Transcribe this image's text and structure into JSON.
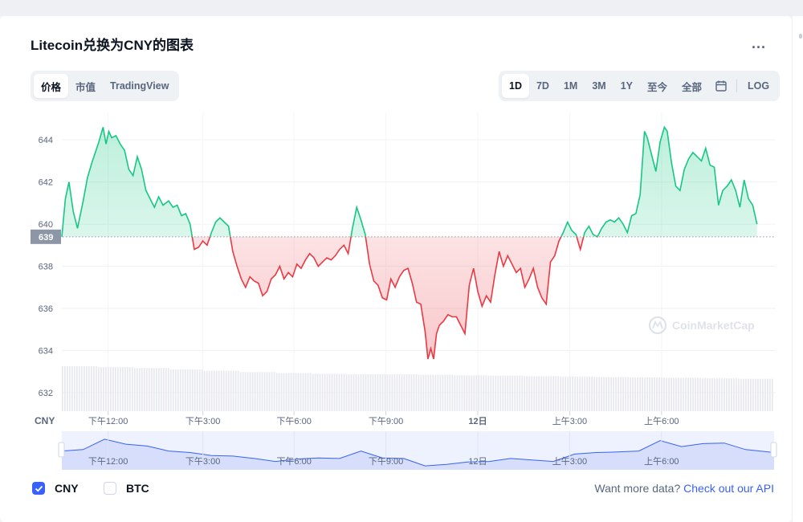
{
  "title": "Litecoin兑换为CNY的图表",
  "menu_icon": "more-horizontal-icon",
  "more_label": "...",
  "view_tabs": [
    {
      "label": "价格",
      "active": true
    },
    {
      "label": "市值",
      "active": false
    },
    {
      "label": "TradingView",
      "active": false
    }
  ],
  "range_tabs": [
    {
      "label": "1D",
      "active": true
    },
    {
      "label": "7D",
      "active": false
    },
    {
      "label": "1M",
      "active": false
    },
    {
      "label": "3M",
      "active": false
    },
    {
      "label": "1Y",
      "active": false
    },
    {
      "label": "至今",
      "active": false
    },
    {
      "label": "全部",
      "active": false
    }
  ],
  "calendar_icon": "calendar-icon",
  "log_label": "LOG",
  "currency_label": "CNY",
  "watermark": "CoinMarketCap",
  "checkboxes": [
    {
      "label": "CNY",
      "checked": true
    },
    {
      "label": "BTC",
      "checked": false
    }
  ],
  "more_data_text": "Want more data?",
  "api_link": "Check out our API",
  "colors": {
    "up": "#16c784",
    "down": "#ea3943",
    "accent": "#3861fb"
  },
  "chart_data": {
    "type": "line",
    "baseline": 639.4,
    "baseline_label": "639",
    "ylim": [
      631.2,
      645.3
    ],
    "yticks": [
      644,
      642,
      640,
      638,
      636,
      634,
      632
    ],
    "x_ticks": [
      {
        "t": 0.065,
        "label": "下午12:00"
      },
      {
        "t": 0.198,
        "label": "下午3:00"
      },
      {
        "t": 0.326,
        "label": "下午6:00"
      },
      {
        "t": 0.455,
        "label": "下午9:00"
      },
      {
        "t": 0.584,
        "label": "12日"
      },
      {
        "t": 0.713,
        "label": "上午3:00"
      },
      {
        "t": 0.842,
        "label": "上午6:00"
      }
    ],
    "price_series": [
      [
        0.0,
        639.4
      ],
      [
        0.005,
        641.2
      ],
      [
        0.01,
        642.0
      ],
      [
        0.016,
        640.6
      ],
      [
        0.022,
        639.8
      ],
      [
        0.03,
        641.1
      ],
      [
        0.036,
        642.2
      ],
      [
        0.042,
        642.9
      ],
      [
        0.048,
        643.5
      ],
      [
        0.052,
        643.9
      ],
      [
        0.058,
        644.6
      ],
      [
        0.062,
        643.8
      ],
      [
        0.066,
        644.4
      ],
      [
        0.07,
        644.1
      ],
      [
        0.076,
        644.2
      ],
      [
        0.082,
        643.8
      ],
      [
        0.088,
        643.5
      ],
      [
        0.094,
        642.6
      ],
      [
        0.1,
        642.3
      ],
      [
        0.106,
        643.2
      ],
      [
        0.112,
        642.6
      ],
      [
        0.118,
        641.6
      ],
      [
        0.124,
        641.2
      ],
      [
        0.13,
        640.8
      ],
      [
        0.136,
        641.3
      ],
      [
        0.142,
        640.9
      ],
      [
        0.15,
        641.1
      ],
      [
        0.156,
        640.8
      ],
      [
        0.162,
        640.9
      ],
      [
        0.168,
        640.4
      ],
      [
        0.174,
        640.5
      ],
      [
        0.18,
        640.0
      ],
      [
        0.186,
        638.8
      ],
      [
        0.192,
        638.9
      ],
      [
        0.198,
        639.2
      ],
      [
        0.204,
        639.0
      ],
      [
        0.21,
        639.6
      ],
      [
        0.216,
        640.1
      ],
      [
        0.222,
        640.3
      ],
      [
        0.228,
        640.1
      ],
      [
        0.234,
        639.9
      ],
      [
        0.24,
        638.7
      ],
      [
        0.246,
        638.0
      ],
      [
        0.252,
        637.4
      ],
      [
        0.258,
        637.0
      ],
      [
        0.264,
        637.5
      ],
      [
        0.27,
        637.3
      ],
      [
        0.276,
        637.2
      ],
      [
        0.282,
        636.6
      ],
      [
        0.288,
        636.8
      ],
      [
        0.294,
        637.4
      ],
      [
        0.3,
        637.6
      ],
      [
        0.306,
        638.0
      ],
      [
        0.312,
        637.4
      ],
      [
        0.318,
        637.7
      ],
      [
        0.324,
        637.5
      ],
      [
        0.33,
        638.1
      ],
      [
        0.336,
        637.9
      ],
      [
        0.342,
        638.3
      ],
      [
        0.348,
        638.6
      ],
      [
        0.354,
        638.4
      ],
      [
        0.36,
        638.0
      ],
      [
        0.366,
        638.2
      ],
      [
        0.372,
        638.4
      ],
      [
        0.378,
        638.3
      ],
      [
        0.384,
        638.5
      ],
      [
        0.39,
        638.8
      ],
      [
        0.396,
        639.0
      ],
      [
        0.402,
        638.6
      ],
      [
        0.408,
        639.8
      ],
      [
        0.414,
        640.8
      ],
      [
        0.42,
        640.2
      ],
      [
        0.426,
        639.5
      ],
      [
        0.432,
        638.1
      ],
      [
        0.438,
        637.3
      ],
      [
        0.444,
        637.1
      ],
      [
        0.45,
        636.5
      ],
      [
        0.456,
        636.4
      ],
      [
        0.462,
        637.4
      ],
      [
        0.468,
        637.0
      ],
      [
        0.474,
        637.5
      ],
      [
        0.48,
        637.8
      ],
      [
        0.486,
        637.9
      ],
      [
        0.492,
        637.2
      ],
      [
        0.498,
        636.3
      ],
      [
        0.504,
        636.2
      ],
      [
        0.51,
        634.9
      ],
      [
        0.514,
        633.6
      ],
      [
        0.518,
        634.1
      ],
      [
        0.522,
        633.6
      ],
      [
        0.526,
        634.8
      ],
      [
        0.53,
        635.2
      ],
      [
        0.536,
        635.4
      ],
      [
        0.542,
        635.7
      ],
      [
        0.548,
        635.6
      ],
      [
        0.554,
        635.6
      ],
      [
        0.56,
        635.2
      ],
      [
        0.566,
        634.8
      ],
      [
        0.572,
        637.1
      ],
      [
        0.578,
        637.9
      ],
      [
        0.584,
        636.8
      ],
      [
        0.59,
        636.1
      ],
      [
        0.596,
        636.6
      ],
      [
        0.602,
        636.3
      ],
      [
        0.608,
        637.6
      ],
      [
        0.614,
        638.7
      ],
      [
        0.62,
        638.0
      ],
      [
        0.626,
        638.5
      ],
      [
        0.632,
        638.1
      ],
      [
        0.638,
        637.7
      ],
      [
        0.644,
        637.9
      ],
      [
        0.65,
        637.0
      ],
      [
        0.656,
        637.4
      ],
      [
        0.662,
        637.9
      ],
      [
        0.668,
        637.0
      ],
      [
        0.674,
        636.5
      ],
      [
        0.68,
        636.2
      ],
      [
        0.686,
        638.2
      ],
      [
        0.692,
        638.5
      ],
      [
        0.698,
        639.2
      ],
      [
        0.704,
        639.6
      ],
      [
        0.71,
        640.1
      ],
      [
        0.716,
        639.7
      ],
      [
        0.722,
        639.5
      ],
      [
        0.728,
        638.8
      ],
      [
        0.734,
        639.6
      ],
      [
        0.74,
        639.9
      ],
      [
        0.746,
        639.5
      ],
      [
        0.752,
        639.4
      ],
      [
        0.758,
        639.8
      ],
      [
        0.764,
        640.1
      ],
      [
        0.77,
        640.2
      ],
      [
        0.776,
        640.1
      ],
      [
        0.782,
        640.3
      ],
      [
        0.788,
        640.0
      ],
      [
        0.794,
        639.6
      ],
      [
        0.8,
        640.4
      ],
      [
        0.806,
        640.5
      ],
      [
        0.812,
        641.4
      ],
      [
        0.818,
        644.4
      ],
      [
        0.822,
        644.1
      ],
      [
        0.828,
        643.3
      ],
      [
        0.834,
        642.5
      ],
      [
        0.84,
        643.9
      ],
      [
        0.846,
        644.6
      ],
      [
        0.85,
        644.4
      ],
      [
        0.856,
        642.9
      ],
      [
        0.862,
        641.8
      ],
      [
        0.868,
        641.6
      ],
      [
        0.874,
        642.6
      ],
      [
        0.88,
        643.1
      ],
      [
        0.886,
        643.4
      ],
      [
        0.892,
        643.2
      ],
      [
        0.898,
        643.0
      ],
      [
        0.904,
        643.6
      ],
      [
        0.91,
        642.8
      ],
      [
        0.916,
        642.7
      ],
      [
        0.922,
        640.9
      ],
      [
        0.928,
        641.6
      ],
      [
        0.934,
        641.8
      ],
      [
        0.94,
        642.1
      ],
      [
        0.946,
        641.6
      ],
      [
        0.952,
        640.8
      ],
      [
        0.958,
        642.1
      ],
      [
        0.964,
        641.2
      ],
      [
        0.97,
        640.9
      ],
      [
        0.976,
        640.0
      ]
    ],
    "volume_levels": [
      1.0,
      0.98,
      0.96,
      0.93,
      0.9,
      0.87,
      0.85,
      0.83,
      0.82,
      0.82,
      0.81,
      0.8,
      0.79,
      0.78,
      0.77,
      0.76,
      0.75,
      0.74,
      0.73,
      0.72
    ],
    "navigator_series": [
      [
        0.0,
        0.55
      ],
      [
        0.03,
        0.6
      ],
      [
        0.06,
        0.95
      ],
      [
        0.09,
        0.78
      ],
      [
        0.12,
        0.72
      ],
      [
        0.15,
        0.55
      ],
      [
        0.18,
        0.5
      ],
      [
        0.21,
        0.4
      ],
      [
        0.24,
        0.38
      ],
      [
        0.27,
        0.3
      ],
      [
        0.3,
        0.2
      ],
      [
        0.33,
        0.28
      ],
      [
        0.36,
        0.32
      ],
      [
        0.39,
        0.3
      ],
      [
        0.42,
        0.55
      ],
      [
        0.45,
        0.32
      ],
      [
        0.48,
        0.3
      ],
      [
        0.51,
        0.05
      ],
      [
        0.54,
        0.1
      ],
      [
        0.57,
        0.18
      ],
      [
        0.6,
        0.2
      ],
      [
        0.63,
        0.3
      ],
      [
        0.66,
        0.25
      ],
      [
        0.69,
        0.2
      ],
      [
        0.72,
        0.45
      ],
      [
        0.75,
        0.5
      ],
      [
        0.78,
        0.52
      ],
      [
        0.81,
        0.55
      ],
      [
        0.84,
        0.9
      ],
      [
        0.87,
        0.7
      ],
      [
        0.9,
        0.8
      ],
      [
        0.93,
        0.82
      ],
      [
        0.96,
        0.6
      ],
      [
        1.0,
        0.5
      ]
    ]
  }
}
